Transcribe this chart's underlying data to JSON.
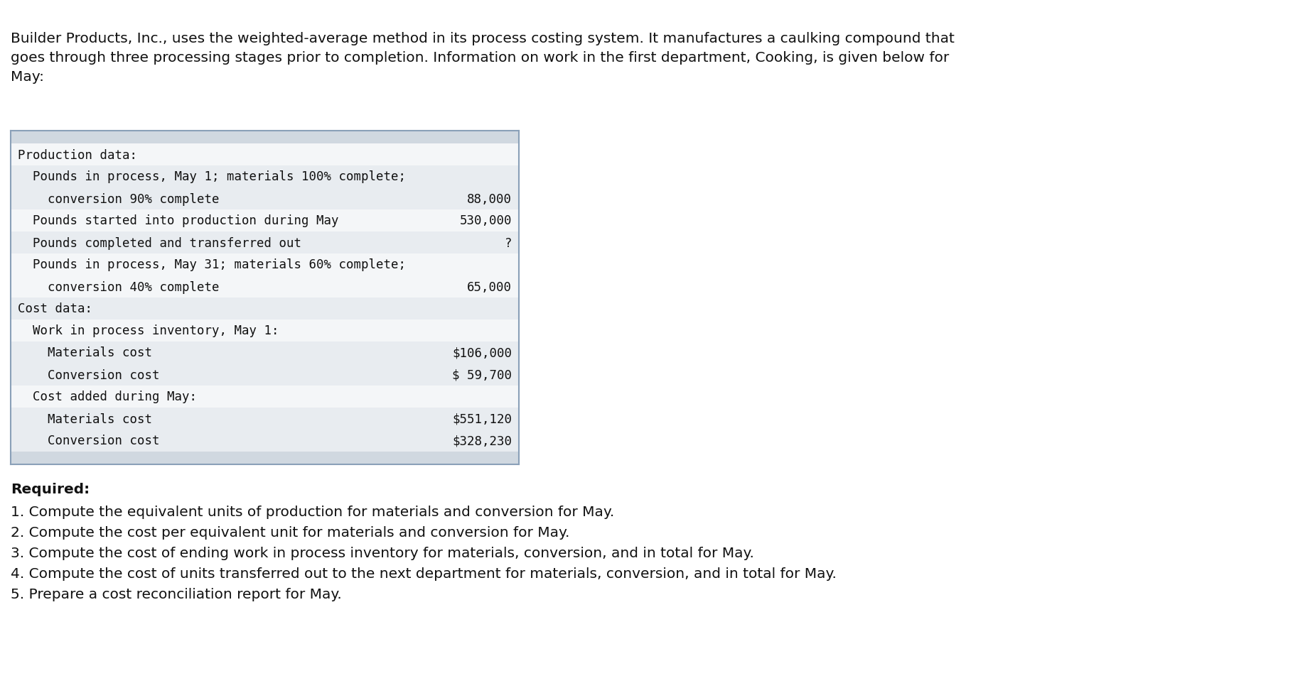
{
  "intro_text_lines": [
    "Builder Products, Inc., uses the weighted-average method in its process costing system. It manufactures a caulking compound that",
    "goes through three processing stages prior to completion. Information on work in the first department, Cooking, is given below for",
    "May:"
  ],
  "table_header_bg": "#d0d8e0",
  "table_row_bg_light": "#e8ecf0",
  "table_row_bg_white": "#f4f6f8",
  "table_border_top_color": "#8aa0b8",
  "table_border_bottom_color": "#8aa0b8",
  "table_rows": [
    {
      "label": "Production data:",
      "value": "",
      "bg": "white"
    },
    {
      "label": "  Pounds in process, May 1; materials 100% complete;",
      "value": "",
      "bg": "light"
    },
    {
      "label": "    conversion 90% complete",
      "value": "88,000",
      "bg": "light"
    },
    {
      "label": "  Pounds started into production during May",
      "value": "530,000",
      "bg": "white"
    },
    {
      "label": "  Pounds completed and transferred out",
      "value": "?",
      "bg": "light"
    },
    {
      "label": "  Pounds in process, May 31; materials 60% complete;",
      "value": "",
      "bg": "white"
    },
    {
      "label": "    conversion 40% complete",
      "value": "65,000",
      "bg": "white"
    },
    {
      "label": "Cost data:",
      "value": "",
      "bg": "light"
    },
    {
      "label": "  Work in process inventory, May 1:",
      "value": "",
      "bg": "white"
    },
    {
      "label": "    Materials cost",
      "value": "$106,000",
      "bg": "light"
    },
    {
      "label": "    Conversion cost",
      "value": "$ 59,700",
      "bg": "light"
    },
    {
      "label": "  Cost added during May:",
      "value": "",
      "bg": "white"
    },
    {
      "label": "    Materials cost",
      "value": "$551,120",
      "bg": "light"
    },
    {
      "label": "    Conversion cost",
      "value": "$328,230",
      "bg": "light"
    }
  ],
  "required_label": "Required:",
  "required_items": [
    "1. Compute the equivalent units of production for materials and conversion for May.",
    "2. Compute the cost per equivalent unit for materials and conversion for May.",
    "3. Compute the cost of ending work in process inventory for materials, conversion, and in total for May.",
    "4. Compute the cost of units transferred out to the next department for materials, conversion, and in total for May.",
    "5. Prepare a cost reconciliation report for May."
  ],
  "background_color": "#ffffff",
  "text_color": "#111111",
  "font_size_intro": 14.5,
  "font_size_table": 12.5,
  "font_size_required": 14.5
}
